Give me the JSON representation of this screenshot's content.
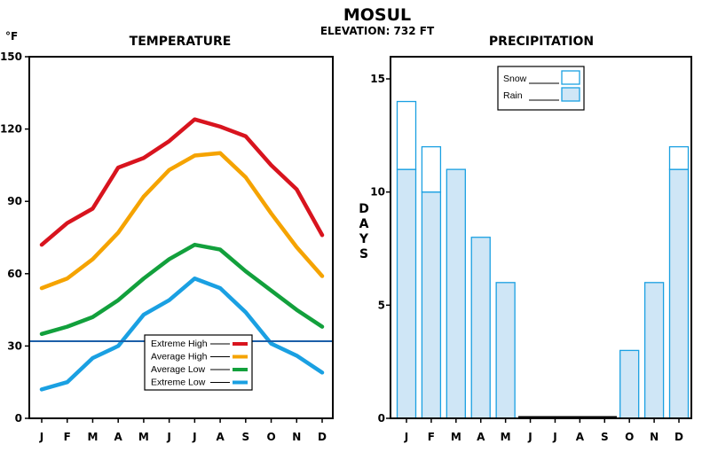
{
  "header": {
    "title": "MOSUL",
    "subtitle": "ELEVATION: 732 FT"
  },
  "chart_data": [
    {
      "type": "line",
      "title": "TEMPERATURE",
      "ylabel": "°F",
      "categories": [
        "J",
        "F",
        "M",
        "A",
        "M",
        "J",
        "J",
        "A",
        "S",
        "O",
        "N",
        "D"
      ],
      "ylim": [
        0,
        150
      ],
      "yticks": [
        "0",
        "30",
        "60",
        "90",
        "120",
        "150"
      ],
      "series": [
        {
          "name": "Extreme High",
          "color": "#d8141e",
          "values": [
            72,
            81,
            87,
            104,
            108,
            115,
            124,
            121,
            117,
            105,
            95,
            76
          ]
        },
        {
          "name": "Average High",
          "color": "#f5a300",
          "values": [
            54,
            58,
            66,
            77,
            92,
            103,
            109,
            110,
            100,
            85,
            71,
            59
          ]
        },
        {
          "name": "Average Low",
          "color": "#12a03c",
          "values": [
            35,
            38,
            42,
            49,
            58,
            66,
            72,
            70,
            61,
            53,
            45,
            38
          ]
        },
        {
          "name": "Extreme Low",
          "color": "#1aa0e2",
          "values": [
            12,
            15,
            25,
            30,
            43,
            49,
            58,
            54,
            44,
            31,
            26,
            19
          ]
        }
      ],
      "reference_line": {
        "value": 32,
        "color": "#1c5fa8"
      },
      "legend": {
        "position": "lower-center"
      }
    },
    {
      "type": "bar",
      "title": "PRECIPITATION",
      "ylabel": "DAYS",
      "categories": [
        "J",
        "F",
        "M",
        "A",
        "M",
        "J",
        "J",
        "A",
        "S",
        "O",
        "N",
        "D"
      ],
      "ylim": [
        0,
        16
      ],
      "yticks": [
        "0",
        "5",
        "10",
        "15"
      ],
      "stacked": true,
      "series": [
        {
          "name": "Rain",
          "color": "#cfe6f6",
          "edge": "#1aa0e2",
          "values": [
            11,
            10,
            11,
            8,
            6,
            0,
            0,
            0,
            0,
            3,
            6,
            11
          ]
        },
        {
          "name": "Snow",
          "color": "#ffffff",
          "edge": "#1aa0e2",
          "values": [
            3,
            2,
            0,
            0,
            0,
            0,
            0,
            0,
            0,
            0,
            0,
            1
          ]
        }
      ],
      "legend": {
        "position": "top-center"
      }
    }
  ]
}
